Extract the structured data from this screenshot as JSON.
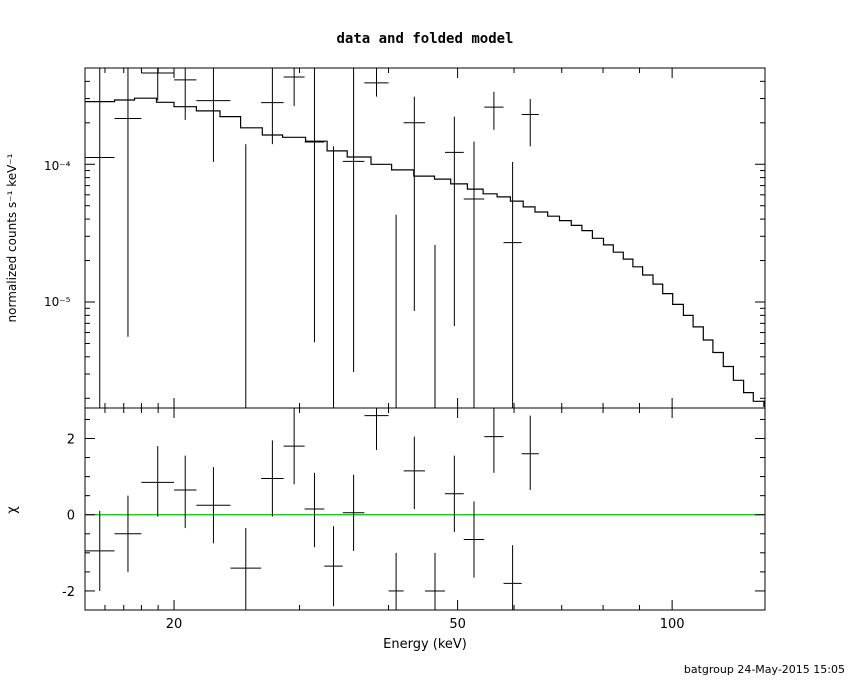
{
  "chart_data": {
    "title": "data and folded model",
    "footer": "batgroup 24-May-2015 15:05",
    "xlabel": "Energy (keV)",
    "x_scale": "log",
    "xlim": [
      15,
      135
    ],
    "x_ticks": [
      20,
      50,
      100
    ],
    "panels": [
      {
        "type": "scatter",
        "ylabel": "normalized counts s⁻¹ keV⁻¹",
        "y_scale": "log",
        "ylim": [
          1.7e-06,
          0.0005
        ],
        "y_tick_labels": [
          "10⁻⁵",
          "10⁻⁴"
        ],
        "data": [
          {
            "x": [
              14.5,
              16.5
            ],
            "y": 0.000112,
            "ylo": 1.7e-06,
            "yhi": 0.0005
          },
          {
            "x": [
              16.5,
              18.0
            ],
            "y": 0.000215,
            "ylo": 5.6e-06,
            "yhi": 0.0005
          },
          {
            "x": [
              18.0,
              20.0
            ],
            "y": 0.00046,
            "ylo": 0.00029,
            "yhi": 0.0005
          },
          {
            "x": [
              20.0,
              21.5
            ],
            "y": 0.00041,
            "ylo": 0.00021,
            "yhi": 0.0005
          },
          {
            "x": [
              21.5,
              24.0
            ],
            "y": 0.00029,
            "ylo": 0.000104,
            "yhi": 0.0005
          },
          {
            "x": [
              24.0,
              26.5
            ],
            "y": 1.7e-06,
            "ylo": 1.7e-06,
            "yhi": 0.00014
          },
          {
            "x": [
              26.5,
              28.5
            ],
            "y": 0.00028,
            "ylo": 0.00014,
            "yhi": 0.0005
          },
          {
            "x": [
              28.5,
              30.5
            ],
            "y": 0.00043,
            "ylo": 0.000265,
            "yhi": 0.0005
          },
          {
            "x": [
              30.5,
              32.5
            ],
            "y": 0.000145,
            "ylo": 5.1e-06,
            "yhi": 0.0005
          },
          {
            "x": [
              32.5,
              34.5
            ],
            "y": 1.7e-06,
            "ylo": 1.7e-06,
            "yhi": 0.000135
          },
          {
            "x": [
              34.5,
              37.0
            ],
            "y": 0.000105,
            "ylo": 3.1e-06,
            "yhi": 0.0005
          },
          {
            "x": [
              37.0,
              40.0
            ],
            "y": 0.00039,
            "ylo": 0.00031,
            "yhi": 0.0005
          },
          {
            "x": [
              40.0,
              42.0
            ],
            "y": 1.7e-06,
            "ylo": 1.7e-06,
            "yhi": 4.3e-05
          },
          {
            "x": [
              42.0,
              45.0
            ],
            "y": 0.0002,
            "ylo": 8.6e-06,
            "yhi": 0.00031
          },
          {
            "x": [
              45.0,
              48.0
            ],
            "y": 1.7e-06,
            "ylo": 1.7e-06,
            "yhi": 2.6e-05
          },
          {
            "x": [
              48.0,
              51.0
            ],
            "y": 0.000122,
            "ylo": 6.7e-06,
            "yhi": 0.000222
          },
          {
            "x": [
              51.0,
              54.5
            ],
            "y": 5.6e-05,
            "ylo": 1.7e-06,
            "yhi": 0.000146
          },
          {
            "x": [
              54.5,
              58.0
            ],
            "y": 0.00026,
            "ylo": 0.000178,
            "yhi": 0.000336
          },
          {
            "x": [
              58.0,
              61.5
            ],
            "y": 2.7e-05,
            "ylo": 1.7e-06,
            "yhi": 0.000104
          },
          {
            "x": [
              61.5,
              65.0
            ],
            "y": 0.00023,
            "ylo": 0.000135,
            "yhi": 0.000298
          }
        ],
        "model_steps": [
          [
            15.0,
            0.000285
          ],
          [
            16.5,
            0.000293
          ],
          [
            17.6,
            0.000302
          ],
          [
            18.9,
            0.000282
          ],
          [
            20.0,
            0.000262
          ],
          [
            21.5,
            0.000244
          ],
          [
            23.2,
            0.000222
          ],
          [
            24.8,
            0.000184
          ],
          [
            26.6,
            0.000163
          ],
          [
            28.4,
            0.000157
          ],
          [
            30.6,
            0.000147
          ],
          [
            32.8,
            0.000125
          ],
          [
            35.0,
            0.000113
          ],
          [
            37.8,
            0.0001
          ],
          [
            40.4,
            9.1e-05
          ],
          [
            43.4,
            8.2e-05
          ],
          [
            46.4,
            7.8e-05
          ],
          [
            48.9,
            7.2e-05
          ],
          [
            51.6,
            6.6e-05
          ],
          [
            54.3,
            6.1e-05
          ],
          [
            56.8,
            5.8e-05
          ],
          [
            59.3,
            5.4e-05
          ],
          [
            61.8,
            4.9e-05
          ],
          [
            64.2,
            4.5e-05
          ],
          [
            66.9,
            4.2e-05
          ],
          [
            69.5,
            3.9e-05
          ],
          [
            72.2,
            3.6e-05
          ],
          [
            74.7,
            3.3e-05
          ],
          [
            77.3,
            2.9e-05
          ],
          [
            80.1,
            2.6e-05
          ],
          [
            82.7,
            2.3e-05
          ],
          [
            85.4,
            2.05e-05
          ],
          [
            88.1,
            1.8e-05
          ],
          [
            90.9,
            1.57e-05
          ],
          [
            94.0,
            1.35e-05
          ],
          [
            97.0,
            1.15e-05
          ],
          [
            100.2,
            9.6e-06
          ],
          [
            103.7,
            8e-06
          ],
          [
            107.0,
            6.6e-06
          ],
          [
            110.6,
            5.3e-06
          ],
          [
            114.1,
            4.3e-06
          ],
          [
            118.0,
            3.4e-06
          ],
          [
            121.9,
            2.7e-06
          ],
          [
            126.0,
            2.2e-06
          ],
          [
            130.0,
            1.9e-06
          ],
          [
            134.5,
            1.75e-06
          ]
        ]
      },
      {
        "type": "scatter",
        "ylabel": "χ",
        "y_scale": "linear",
        "ylim": [
          -2.5,
          2.8
        ],
        "y_ticks": [
          -2,
          0,
          2
        ],
        "reference_line": {
          "y": 0,
          "color": "#00c000"
        },
        "data": [
          {
            "x": [
              14.5,
              16.5
            ],
            "y": -0.95,
            "ylo": -2.0,
            "yhi": 0.1
          },
          {
            "x": [
              16.5,
              18.0
            ],
            "y": -0.5,
            "ylo": -1.5,
            "yhi": 0.5
          },
          {
            "x": [
              18.0,
              20.0
            ],
            "y": 0.85,
            "ylo": -0.05,
            "yhi": 1.8
          },
          {
            "x": [
              20.0,
              21.5
            ],
            "y": 0.65,
            "ylo": -0.35,
            "yhi": 1.55
          },
          {
            "x": [
              21.5,
              24.0
            ],
            "y": 0.25,
            "ylo": -0.75,
            "yhi": 1.25
          },
          {
            "x": [
              24.0,
              26.5
            ],
            "y": -1.4,
            "ylo": -2.5,
            "yhi": -0.35
          },
          {
            "x": [
              26.5,
              28.5
            ],
            "y": 0.95,
            "ylo": -0.05,
            "yhi": 1.95
          },
          {
            "x": [
              28.5,
              30.5
            ],
            "y": 1.8,
            "ylo": 0.8,
            "yhi": 2.8
          },
          {
            "x": [
              30.5,
              32.5
            ],
            "y": 0.15,
            "ylo": -0.85,
            "yhi": 1.1
          },
          {
            "x": [
              32.5,
              34.5
            ],
            "y": -1.35,
            "ylo": -2.4,
            "yhi": -0.3
          },
          {
            "x": [
              34.5,
              37.0
            ],
            "y": 0.05,
            "ylo": -0.95,
            "yhi": 1.05
          },
          {
            "x": [
              37.0,
              40.0
            ],
            "y": 2.6,
            "ylo": 1.7,
            "yhi": 2.8
          },
          {
            "x": [
              40.0,
              42.0
            ],
            "y": -2.0,
            "ylo": -2.5,
            "yhi": -1.0
          },
          {
            "x": [
              42.0,
              45.0
            ],
            "y": 1.15,
            "ylo": 0.15,
            "yhi": 2.05
          },
          {
            "x": [
              45.0,
              48.0
            ],
            "y": -2.0,
            "ylo": -2.5,
            "yhi": -1.0
          },
          {
            "x": [
              48.0,
              51.0
            ],
            "y": 0.55,
            "ylo": -0.45,
            "yhi": 1.55
          },
          {
            "x": [
              51.0,
              54.5
            ],
            "y": -0.65,
            "ylo": -1.65,
            "yhi": 0.35
          },
          {
            "x": [
              54.5,
              58.0
            ],
            "y": 2.05,
            "ylo": 1.1,
            "yhi": 2.8
          },
          {
            "x": [
              58.0,
              61.5
            ],
            "y": -1.8,
            "ylo": -2.5,
            "yhi": -0.8
          },
          {
            "x": [
              61.5,
              65.0
            ],
            "y": 1.6,
            "ylo": 0.65,
            "yhi": 2.6
          }
        ]
      }
    ]
  }
}
